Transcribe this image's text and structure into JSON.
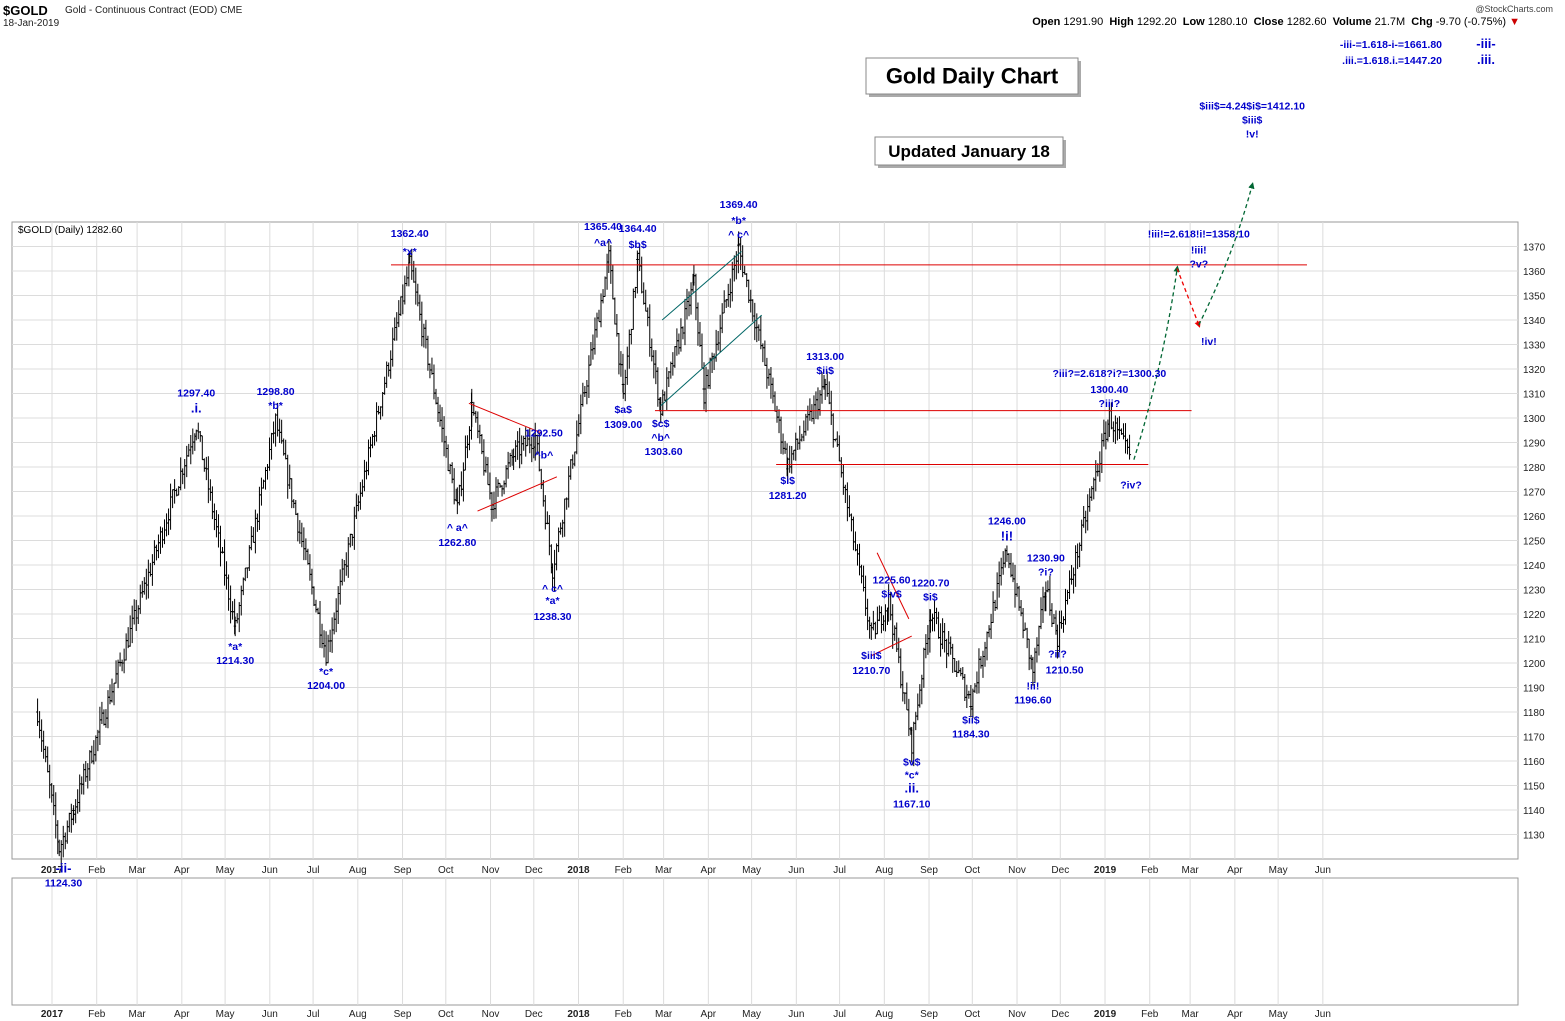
{
  "header": {
    "symbol": "$GOLD",
    "description": "Gold - Continuous Contract (EOD)",
    "exchange": "CME",
    "date": "18-Jan-2019",
    "credit": "@StockCharts.com",
    "open_label": "Open",
    "open": "1291.90",
    "high_label": "High",
    "high": "1292.20",
    "low_label": "Low",
    "low": "1280.10",
    "close_label": "Close",
    "close": "1282.60",
    "volume_label": "Volume",
    "volume": "21.7M",
    "chg_label": "Chg",
    "chg": "-9.70 (-0.75%)"
  },
  "legend": "$GOLD (Daily) 1282.60",
  "colors": {
    "grid": "#dcdcdc",
    "bar": "#000000",
    "label": "#0000cc",
    "hline": "#dd0000",
    "channel": "#006666",
    "up_arrow": "#006633",
    "down_arrow": "#ee0000"
  },
  "boxes": {
    "title": "Gold Daily Chart",
    "updated": "Updated January 18"
  },
  "targets": [
    {
      "text": "-iii-=1.618-i-=1661.80"
    },
    {
      "text": ".iii.=1.618.i.=1447.20"
    }
  ],
  "target_tags": [
    "-iii-",
    ".iii."
  ],
  "chart_data": {
    "type": "ohlc",
    "ylim": [
      1120,
      1380
    ],
    "y_ticks": [
      1130,
      1140,
      1150,
      1160,
      1170,
      1180,
      1190,
      1200,
      1210,
      1220,
      1230,
      1240,
      1250,
      1260,
      1270,
      1280,
      1290,
      1300,
      1310,
      1320,
      1330,
      1340,
      1350,
      1360,
      1370
    ],
    "x_labels": [
      {
        "t": "2017",
        "d": 0,
        "bold": true
      },
      {
        "t": "Feb",
        "d": 31
      },
      {
        "t": "Mar",
        "d": 59
      },
      {
        "t": "Apr",
        "d": 90
      },
      {
        "t": "May",
        "d": 120
      },
      {
        "t": "Jun",
        "d": 151
      },
      {
        "t": "Jul",
        "d": 181
      },
      {
        "t": "Aug",
        "d": 212
      },
      {
        "t": "Sep",
        "d": 243
      },
      {
        "t": "Oct",
        "d": 273
      },
      {
        "t": "Nov",
        "d": 304
      },
      {
        "t": "Dec",
        "d": 334
      },
      {
        "t": "2018",
        "d": 365,
        "bold": true
      },
      {
        "t": "Feb",
        "d": 396
      },
      {
        "t": "Mar",
        "d": 424
      },
      {
        "t": "Apr",
        "d": 455
      },
      {
        "t": "May",
        "d": 485
      },
      {
        "t": "Jun",
        "d": 516
      },
      {
        "t": "Jul",
        "d": 546
      },
      {
        "t": "Aug",
        "d": 577
      },
      {
        "t": "Sep",
        "d": 608
      },
      {
        "t": "Oct",
        "d": 638
      },
      {
        "t": "Nov",
        "d": 669
      },
      {
        "t": "Dec",
        "d": 699
      },
      {
        "t": "2019",
        "d": 730,
        "bold": true
      },
      {
        "t": "Feb",
        "d": 761
      },
      {
        "t": "Mar",
        "d": 789
      },
      {
        "t": "Apr",
        "d": 820
      },
      {
        "t": "May",
        "d": 850
      },
      {
        "t": "Jun",
        "d": 881
      }
    ],
    "pivots": [
      {
        "d": -10,
        "p": 1180
      },
      {
        "d": 5,
        "p": 1124.3
      },
      {
        "d": 15,
        "p": 1140
      },
      {
        "d": 100,
        "p": 1297.4
      },
      {
        "d": 127,
        "p": 1214.3
      },
      {
        "d": 155,
        "p": 1298.8
      },
      {
        "d": 190,
        "p": 1204.0
      },
      {
        "d": 248,
        "p": 1362.4
      },
      {
        "d": 281,
        "p": 1262.8
      },
      {
        "d": 291,
        "p": 1305
      },
      {
        "d": 305,
        "p": 1265
      },
      {
        "d": 320,
        "p": 1285
      },
      {
        "d": 335,
        "p": 1292.5
      },
      {
        "d": 347,
        "p": 1238.3
      },
      {
        "d": 386,
        "p": 1365.4
      },
      {
        "d": 396,
        "p": 1309.0
      },
      {
        "d": 406,
        "p": 1364.4
      },
      {
        "d": 422,
        "p": 1303.6
      },
      {
        "d": 445,
        "p": 1355
      },
      {
        "d": 452,
        "p": 1310
      },
      {
        "d": 476,
        "p": 1369.4
      },
      {
        "d": 510,
        "p": 1281.2
      },
      {
        "d": 536,
        "p": 1313.0
      },
      {
        "d": 568,
        "p": 1210.7
      },
      {
        "d": 580,
        "p": 1225.6
      },
      {
        "d": 596,
        "p": 1167.1
      },
      {
        "d": 609,
        "p": 1220.7
      },
      {
        "d": 637,
        "p": 1184.3
      },
      {
        "d": 662,
        "p": 1246.0
      },
      {
        "d": 680,
        "p": 1196.6
      },
      {
        "d": 689,
        "p": 1230.9
      },
      {
        "d": 697,
        "p": 1210.5
      },
      {
        "d": 733,
        "p": 1300.4
      },
      {
        "d": 748,
        "p": 1282.6
      }
    ],
    "hlines": [
      {
        "p": 1362.5,
        "d0": 235,
        "d1": 870
      },
      {
        "p": 1303.0,
        "d0": 418,
        "d1": 790
      },
      {
        "p": 1281.0,
        "d0": 502,
        "d1": 760
      }
    ],
    "labels": [
      {
        "t": "-ii-",
        "d": 8,
        "p": 1124.3,
        "dy": 16,
        "cls": "big"
      },
      {
        "t": "1124.30",
        "d": 8,
        "p": 1124.3,
        "dy": 30
      },
      {
        "t": "1297.40",
        "d": 100,
        "p": 1297.4,
        "dy": -28
      },
      {
        "t": ".i.",
        "d": 100,
        "p": 1297.4,
        "dy": -12,
        "cls": "big"
      },
      {
        "t": "*a*",
        "d": 127,
        "p": 1214.3,
        "dy": 14
      },
      {
        "t": "1214.30",
        "d": 127,
        "p": 1214.3,
        "dy": 28
      },
      {
        "t": "1298.80",
        "d": 155,
        "p": 1298.8,
        "dy": -26
      },
      {
        "t": "*b*",
        "d": 155,
        "p": 1298.8,
        "dy": -12
      },
      {
        "t": "*c*",
        "d": 190,
        "p": 1204.0,
        "dy": 14
      },
      {
        "t": "1204.00",
        "d": 190,
        "p": 1204.0,
        "dy": 28
      },
      {
        "t": "1362.40",
        "d": 248,
        "p": 1362.4,
        "dy": -28
      },
      {
        "t": "*x*",
        "d": 248,
        "p": 1362.4,
        "dy": -10
      },
      {
        "t": "^ a^",
        "d": 281,
        "p": 1262.8,
        "dy": 14
      },
      {
        "t": "1262.80",
        "d": 281,
        "p": 1262.8,
        "dy": 29
      },
      {
        "t": "1292.50",
        "d": 341,
        "p": 1292.5,
        "dy": 0
      },
      {
        "t": "^b^",
        "d": 341,
        "p": 1292.5,
        "dy": 14
      },
      {
        "t": "^ c^",
        "d": 347,
        "p": 1238.3,
        "dy": 15
      },
      {
        "t": "*a*",
        "d": 347,
        "p": 1238.3,
        "dy": 27
      },
      {
        "t": "1238.30",
        "d": 347,
        "p": 1238.3,
        "dy": 43
      },
      {
        "t": "1365.40",
        "d": 382,
        "p": 1365.4,
        "dy": -28
      },
      {
        "t": "^a^",
        "d": 382,
        "p": 1365.4,
        "dy": -12
      },
      {
        "t": "$a$",
        "d": 396,
        "p": 1309.0,
        "dy": 9
      },
      {
        "t": "1309.00",
        "d": 396,
        "p": 1309.0,
        "dy": 24
      },
      {
        "t": "1364.40",
        "d": 406,
        "p": 1364.4,
        "dy": -28
      },
      {
        "t": "$b$",
        "d": 406,
        "p": 1364.4,
        "dy": -12
      },
      {
        "t": "$c$",
        "d": 422,
        "p": 1303.6,
        "dy": 10
      },
      {
        "t": "^b^",
        "d": 422,
        "p": 1303.6,
        "dy": 24
      },
      {
        "t": "1303.60",
        "d": 424,
        "p": 1303.6,
        "dy": 38
      },
      {
        "t": "1369.40",
        "d": 476,
        "p": 1369.4,
        "dy": -40
      },
      {
        "t": "*b*",
        "d": 476,
        "p": 1369.4,
        "dy": -24
      },
      {
        "t": "^ c^",
        "d": 476,
        "p": 1369.4,
        "dy": -10
      },
      {
        "t": "1313.00",
        "d": 536,
        "p": 1313.0,
        "dy": -26
      },
      {
        "t": "$ii$",
        "d": 536,
        "p": 1313.0,
        "dy": -12
      },
      {
        "t": "$i$",
        "d": 510,
        "p": 1281.2,
        "dy": 12
      },
      {
        "t": "1281.20",
        "d": 510,
        "p": 1281.2,
        "dy": 27
      },
      {
        "t": "$iii$",
        "d": 568,
        "p": 1210.7,
        "dy": 14
      },
      {
        "t": "1210.70",
        "d": 568,
        "p": 1210.7,
        "dy": 29
      },
      {
        "t": "1225.60",
        "d": 582,
        "p": 1225.6,
        "dy": -17
      },
      {
        "t": "$iv$",
        "d": 582,
        "p": 1225.6,
        "dy": -3
      },
      {
        "t": "1220.70",
        "d": 609,
        "p": 1220.7,
        "dy": -26
      },
      {
        "t": "$i$",
        "d": 609,
        "p": 1220.7,
        "dy": -12
      },
      {
        "t": "$v$",
        "d": 596,
        "p": 1167.1,
        "dy": 14
      },
      {
        "t": "*c*",
        "d": 596,
        "p": 1167.1,
        "dy": 27
      },
      {
        "t": ".ii.",
        "d": 596,
        "p": 1167.1,
        "dy": 41,
        "cls": "big"
      },
      {
        "t": "1167.10",
        "d": 596,
        "p": 1167.1,
        "dy": 56
      },
      {
        "t": "$ii$",
        "d": 637,
        "p": 1184.3,
        "dy": 14
      },
      {
        "t": "1184.30",
        "d": 637,
        "p": 1184.3,
        "dy": 28
      },
      {
        "t": "1246.00",
        "d": 662,
        "p": 1246.0,
        "dy": -26
      },
      {
        "t": "!i!",
        "d": 662,
        "p": 1246.0,
        "dy": -10,
        "cls": "big"
      },
      {
        "t": "!ii!",
        "d": 680,
        "p": 1196.6,
        "dy": 10
      },
      {
        "t": "1196.60",
        "d": 680,
        "p": 1196.6,
        "dy": 24
      },
      {
        "t": "1230.90",
        "d": 689,
        "p": 1230.9,
        "dy": -26
      },
      {
        "t": "?i?",
        "d": 689,
        "p": 1230.9,
        "dy": -12
      },
      {
        "t": "?ii?",
        "d": 697,
        "p": 1210.5,
        "dy": 12
      },
      {
        "t": "1210.50",
        "d": 702,
        "p": 1210.5,
        "dy": 28
      },
      {
        "t": "?iii?=2.618?i?=1300.30",
        "d": 733,
        "p": 1300.4,
        "dy": -40
      },
      {
        "t": "1300.40",
        "d": 733,
        "p": 1300.4,
        "dy": -24
      },
      {
        "t": "?iii?",
        "d": 733,
        "p": 1300.4,
        "dy": -10
      },
      {
        "t": "?iv?",
        "d": 748,
        "p": 1282.6,
        "dy": 20
      },
      {
        "t": "!iii!=2.618!i!=1358.10",
        "d": 795,
        "p": 1358.1,
        "dy": -38
      },
      {
        "t": "!iii!",
        "d": 795,
        "p": 1358.1,
        "dy": -22
      },
      {
        "t": "?v?",
        "d": 795,
        "p": 1358.1,
        "dy": -8
      },
      {
        "t": "!iv!",
        "d": 802,
        "p": 1338,
        "dy": 12
      },
      {
        "t": "$iii$=4.24$i$=1412.10",
        "d": 832,
        "p": 1412,
        "dy": -34
      },
      {
        "t": "$iii$",
        "d": 832,
        "p": 1412,
        "dy": -20
      },
      {
        "t": "!v!",
        "d": 832,
        "p": 1412,
        "dy": -6
      }
    ],
    "projection": [
      {
        "d": 750,
        "p": 1283
      },
      {
        "d": 780,
        "p": 1361
      },
      {
        "d": 795,
        "p": 1338
      },
      {
        "d": 832,
        "p": 1395
      }
    ]
  }
}
